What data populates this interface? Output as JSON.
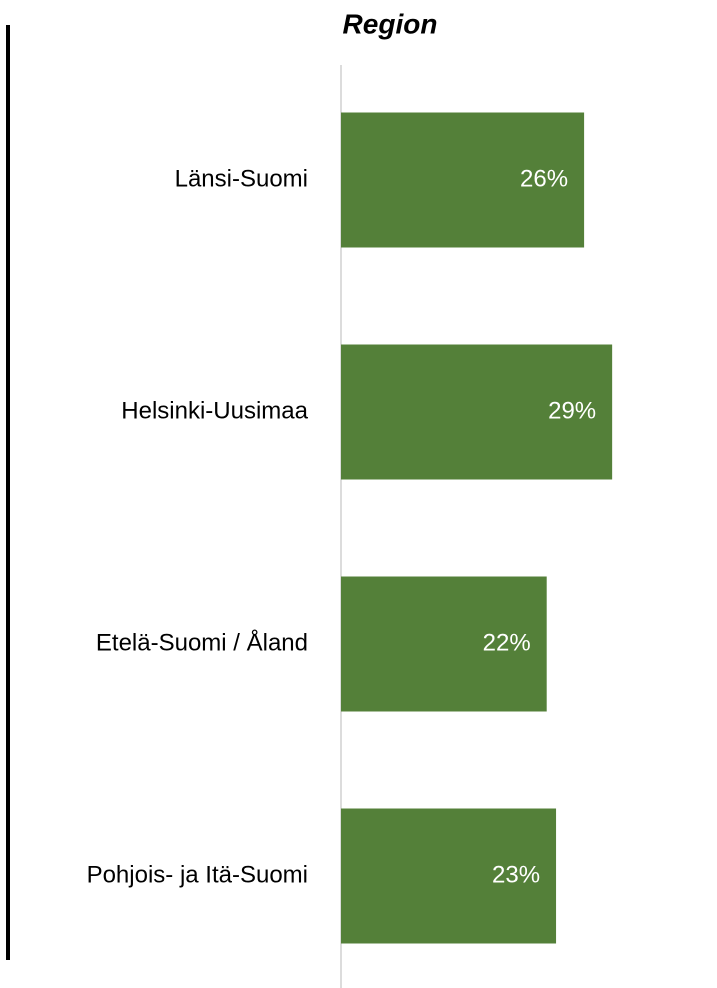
{
  "chart_data": {
    "type": "hbar",
    "title": "Region",
    "categories": [
      "Länsi-Suomi",
      "Helsinki-Uusimaa",
      "Etelä-Suomi / Åland",
      "Pohjois- ja Itä-Suomi"
    ],
    "values": [
      26,
      29,
      22,
      23
    ],
    "value_labels": [
      "26%",
      "29%",
      "22%",
      "23%"
    ],
    "color": "#548039",
    "xlim": [
      0,
      40
    ]
  }
}
